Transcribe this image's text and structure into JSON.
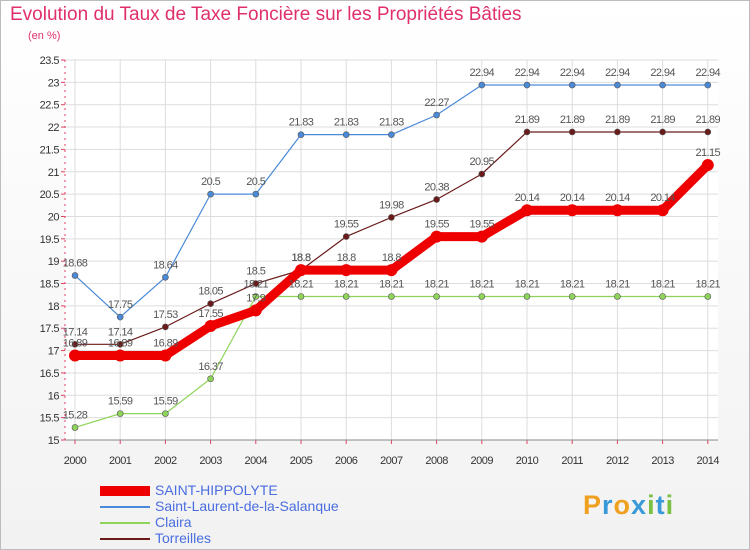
{
  "chart_data": {
    "type": "line",
    "title": "Evolution du Taux de Taxe Foncière sur les Propriétés Bâties",
    "ylabel": "(en %)",
    "xlabel": "",
    "ylim": [
      15,
      23.5
    ],
    "yticks": [
      "15",
      "15.5",
      "16",
      "16.5",
      "17",
      "17.5",
      "18",
      "18.5",
      "19",
      "19.5",
      "20",
      "20.5",
      "21",
      "21.5",
      "22",
      "22.5",
      "23",
      "23.5"
    ],
    "x": [
      "2000",
      "2001",
      "2002",
      "2003",
      "2004",
      "2005",
      "2006",
      "2007",
      "2008",
      "2009",
      "2010",
      "2011",
      "2012",
      "2013",
      "2014"
    ],
    "series": [
      {
        "name": "Saint-Laurent-de-la-Salanque",
        "color": "#4a8ad8",
        "values": [
          18.68,
          17.75,
          18.64,
          20.5,
          20.5,
          21.83,
          21.83,
          21.83,
          22.27,
          22.94,
          22.94,
          22.94,
          22.94,
          22.94,
          22.94
        ]
      },
      {
        "name": "Torreilles",
        "color": "#6b1a1a",
        "values": [
          17.14,
          17.14,
          17.53,
          18.05,
          18.5,
          18.8,
          19.55,
          19.98,
          20.38,
          20.95,
          21.89,
          21.89,
          21.89,
          21.89,
          21.89
        ]
      },
      {
        "name": "Claira",
        "color": "#8fd45a",
        "values": [
          15.28,
          15.59,
          15.59,
          16.37,
          18.21,
          18.21,
          18.21,
          18.21,
          18.21,
          18.21,
          18.21,
          18.21,
          18.21,
          18.21,
          18.21
        ]
      },
      {
        "name": "SAINT-HIPPOLYTE",
        "color": "#ee0000",
        "values": [
          16.89,
          16.89,
          16.89,
          17.55,
          17.9,
          18.8,
          18.8,
          18.8,
          19.55,
          19.55,
          20.14,
          20.14,
          20.14,
          20.14,
          21.15
        ]
      }
    ],
    "labels": [
      [
        "18.68",
        "17.75",
        "18.64",
        "20.5",
        "20.5",
        "21.83",
        "21.83",
        "21.83",
        "22.27",
        "22.94",
        "22.94",
        "22.94",
        "22.94",
        "22.94",
        "22.94"
      ],
      [
        "17.14",
        "17.14",
        "17.53",
        "18.05",
        "18.5",
        "18.8",
        "19.55",
        "19.98",
        "20.38",
        "20.95",
        "21.89",
        "21.89",
        "21.89",
        "21.89",
        "21.89"
      ],
      [
        "15.28",
        "15.59",
        "15.59",
        "16.37",
        "18.21",
        "18.21",
        "18.21",
        "18.21",
        "18.21",
        "18.21",
        "18.21",
        "18.21",
        "18.21",
        "18.21",
        "18.21"
      ],
      [
        "16.89",
        "16.89",
        "16.89",
        "17.55",
        "17.9",
        "18.8",
        "18.8",
        "18.8",
        "19.55",
        "19.55",
        "20.14",
        "20.14",
        "20.14",
        "20.14",
        "21.15"
      ]
    ],
    "legend": [
      "SAINT-HIPPOLYTE",
      "Saint-Laurent-de-la-Salanque",
      "Claira",
      "Torreilles"
    ],
    "legend_colors": [
      "#ee0000",
      "#4a8ad8",
      "#8fd45a",
      "#6b1a1a"
    ]
  },
  "logo_letters": [
    "P",
    "r",
    "o",
    "x",
    "i",
    "t",
    "i"
  ],
  "logo_colors": [
    "#f0a020",
    "#3a9ad9",
    "#f0a020",
    "#3a9ad9",
    "#7ac043",
    "#3a9ad9",
    "#7ac043"
  ]
}
